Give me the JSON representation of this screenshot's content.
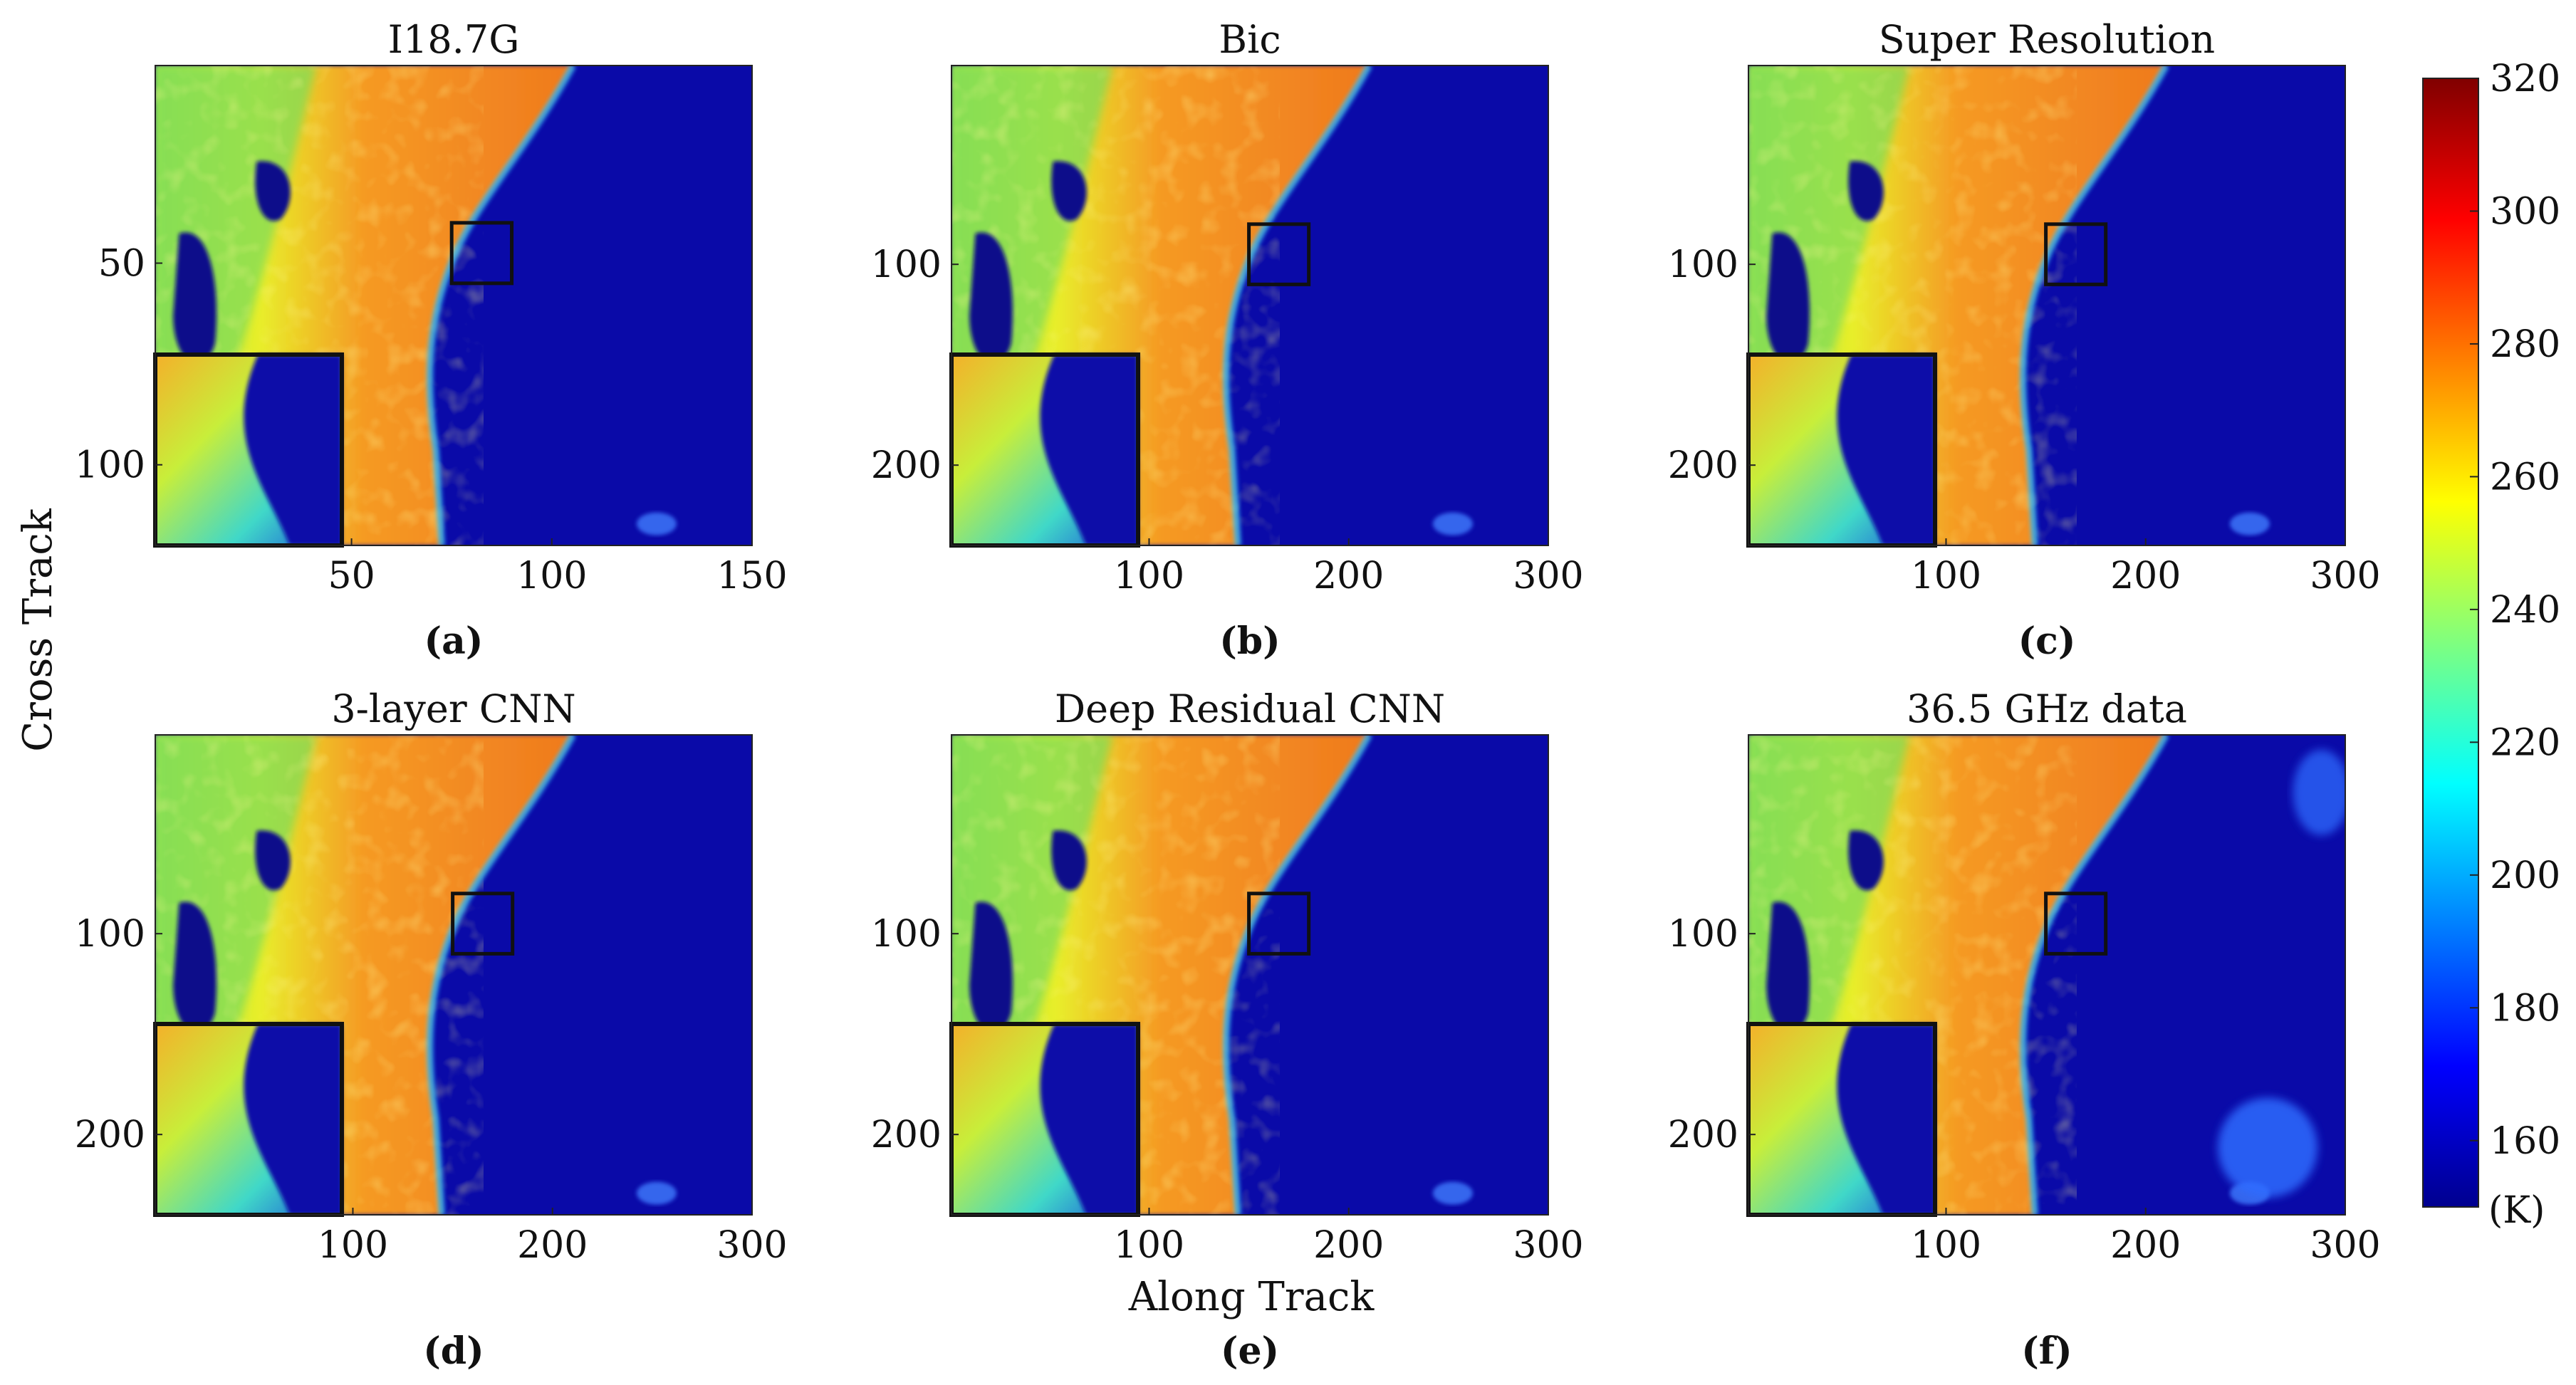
{
  "chart_data": {
    "type": "heatmap",
    "colormap": "jet",
    "colorbar": {
      "min": 150,
      "max": 320,
      "ticks": [
        160,
        180,
        200,
        220,
        240,
        260,
        280,
        300,
        320
      ],
      "unit": "(K)",
      "placement": "right"
    },
    "xlabel": "Along Track",
    "ylabel": "Cross Track",
    "panels": [
      {
        "id": "a",
        "label": "(a)",
        "title": "I18.7G",
        "xlim": [
          1,
          150
        ],
        "ylim": [
          1,
          120
        ],
        "xticks": [
          50,
          100,
          150
        ],
        "yticks": [
          50,
          100
        ],
        "zoom_box": {
          "x": [
            75,
            90
          ],
          "y": [
            40,
            55
          ]
        }
      },
      {
        "id": "b",
        "label": "(b)",
        "title": "Bic",
        "xlim": [
          1,
          300
        ],
        "ylim": [
          1,
          240
        ],
        "xticks": [
          100,
          200,
          300
        ],
        "yticks": [
          100,
          200
        ],
        "zoom_box": {
          "x": [
            150,
            180
          ],
          "y": [
            80,
            110
          ]
        }
      },
      {
        "id": "c",
        "label": "(c)",
        "title": "Super Resolution",
        "xlim": [
          1,
          300
        ],
        "ylim": [
          1,
          240
        ],
        "xticks": [
          100,
          200,
          300
        ],
        "yticks": [
          100,
          200
        ],
        "zoom_box": {
          "x": [
            150,
            180
          ],
          "y": [
            80,
            110
          ]
        }
      },
      {
        "id": "d",
        "label": "(d)",
        "title": "3-layer CNN",
        "xlim": [
          1,
          300
        ],
        "ylim": [
          1,
          240
        ],
        "xticks": [
          100,
          200,
          300
        ],
        "yticks": [
          100,
          200
        ],
        "zoom_box": {
          "x": [
            150,
            180
          ],
          "y": [
            80,
            110
          ]
        }
      },
      {
        "id": "e",
        "label": "(e)",
        "title": "Deep Residual CNN",
        "xlim": [
          1,
          300
        ],
        "ylim": [
          1,
          240
        ],
        "xticks": [
          100,
          200,
          300
        ],
        "yticks": [
          100,
          200
        ],
        "zoom_box": {
          "x": [
            150,
            180
          ],
          "y": [
            80,
            110
          ]
        }
      },
      {
        "id": "f",
        "label": "(f)",
        "title": "36.5 GHz data",
        "xlim": [
          1,
          300
        ],
        "ylim": [
          1,
          240
        ],
        "xticks": [
          100,
          200,
          300
        ],
        "yticks": [
          100,
          200
        ],
        "zoom_box": {
          "x": [
            150,
            180
          ],
          "y": [
            80,
            110
          ]
        }
      }
    ]
  }
}
